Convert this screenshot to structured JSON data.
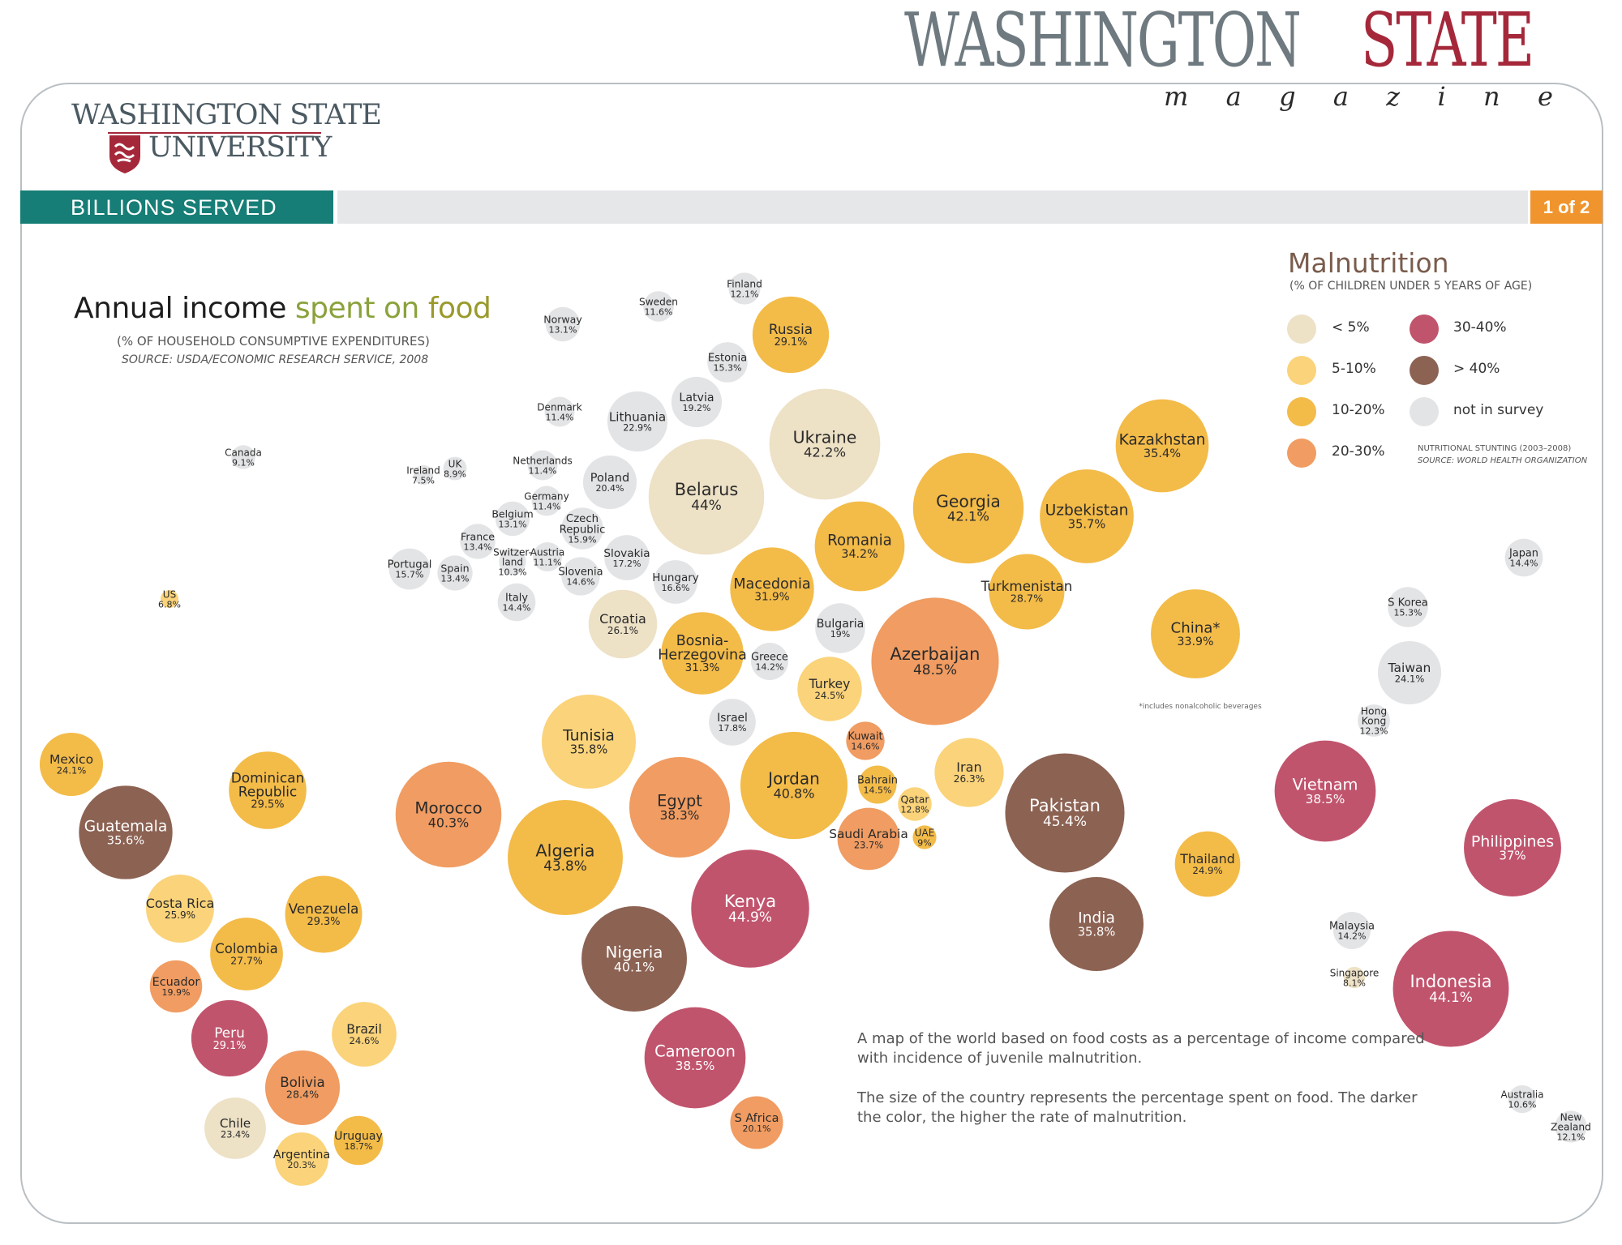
{
  "masthead": {
    "word1": "WASHINGTON",
    "word2": "STATE",
    "tagline_letters": [
      "m",
      "a",
      "g",
      "a",
      "z",
      "i",
      "n",
      "e"
    ]
  },
  "logo": {
    "line1": "WASHINGTON STATE",
    "line2": "UNIVERSITY"
  },
  "section_bar": {
    "title": "BILLIONS SERVED",
    "page": "1 of 2"
  },
  "heading": {
    "title_part1": "Annual income ",
    "title_part2": "spent on ",
    "title_part3": "food",
    "subtitle": "(% OF HOUSEHOLD CONSUMPTIVE EXPENDITURES)",
    "source": "SOURCE: USDA/ECONOMIC RESEARCH SERVICE, 2008"
  },
  "legend": {
    "title": "Malnutrition",
    "subtitle": "(% OF CHILDREN UNDER 5 YEARS OF AGE)",
    "note": "NUTRITIONAL STUNTING (2003–2008)",
    "note_source": "SOURCE: WORLD HEALTH ORGANIZATION",
    "items": [
      {
        "label": "< 5%",
        "color": "#ede1c6"
      },
      {
        "label": "5-10%",
        "color": "#fad37a"
      },
      {
        "label": "10-20%",
        "color": "#f3bb48"
      },
      {
        "label": "20-30%",
        "color": "#f09c62"
      },
      {
        "label": "30-40%",
        "color": "#c1546d"
      },
      {
        "label": "> 40%",
        "color": "#8c6253"
      },
      {
        "label": "not in survey",
        "color": "#e3e4e6"
      }
    ]
  },
  "china_note": "*includes nonalcoholic beverages",
  "description": {
    "p1": "A map of the world based on food costs as a percentage of income compared with incidence of juvenile malnutrition.",
    "p2": "The size of the country represents the percentage spent on food. The darker the color, the higher the rate of malnutrition."
  },
  "chart_data": {
    "type": "bubble-map",
    "size_metric": "percent of household consumptive expenditures spent on food",
    "color_metric": "malnutrition class",
    "countries": [
      {
        "name": "Finland",
        "value": "12.1%",
        "v": 12.1,
        "cls": 6
      },
      {
        "name": "Sweden",
        "value": "11.6%",
        "v": 11.6,
        "cls": 6
      },
      {
        "name": "Norway",
        "value": "13.1%",
        "v": 13.1,
        "cls": 6
      },
      {
        "name": "Russia",
        "value": "29.1%",
        "v": 29.1,
        "cls": 2
      },
      {
        "name": "Estonia",
        "value": "15.3%",
        "v": 15.3,
        "cls": 6
      },
      {
        "name": "Latvia",
        "value": "19.2%",
        "v": 19.2,
        "cls": 6
      },
      {
        "name": "Denmark",
        "value": "11.4%",
        "v": 11.4,
        "cls": 6
      },
      {
        "name": "Lithuania",
        "value": "22.9%",
        "v": 22.9,
        "cls": 6
      },
      {
        "name": "Ukraine",
        "value": "42.2%",
        "v": 42.2,
        "cls": 0
      },
      {
        "name": "Kazakhstan",
        "value": "35.4%",
        "v": 35.4,
        "cls": 2
      },
      {
        "name": "Canada",
        "value": "9.1%",
        "v": 9.1,
        "cls": 6
      },
      {
        "name": "Ireland",
        "value": "7.5%",
        "v": 7.5,
        "cls": 6
      },
      {
        "name": "UK",
        "value": "8.9%",
        "v": 8.9,
        "cls": 6
      },
      {
        "name": "Netherlands",
        "value": "11.4%",
        "v": 11.4,
        "cls": 6
      },
      {
        "name": "Poland",
        "value": "20.4%",
        "v": 20.4,
        "cls": 6
      },
      {
        "name": "Belarus",
        "value": "44%",
        "v": 44,
        "cls": 0
      },
      {
        "name": "Georgia",
        "value": "42.1%",
        "v": 42.1,
        "cls": 2
      },
      {
        "name": "Uzbekistan",
        "value": "35.7%",
        "v": 35.7,
        "cls": 2
      },
      {
        "name": "Germany",
        "value": "11.4%",
        "v": 11.4,
        "cls": 6
      },
      {
        "name": "Belgium",
        "value": "13.1%",
        "v": 13.1,
        "cls": 6
      },
      {
        "name": "Czech Republic",
        "value": "15.9%",
        "v": 15.9,
        "cls": 6
      },
      {
        "name": "France",
        "value": "13.4%",
        "v": 13.4,
        "cls": 6
      },
      {
        "name": "Romania",
        "value": "34.2%",
        "v": 34.2,
        "cls": 2
      },
      {
        "name": "Switzerland",
        "value": "10.3%",
        "v": 10.3,
        "cls": 6
      },
      {
        "name": "Austria",
        "value": "11.1%",
        "v": 11.1,
        "cls": 6
      },
      {
        "name": "Slovakia",
        "value": "17.2%",
        "v": 17.2,
        "cls": 6
      },
      {
        "name": "Portugal",
        "value": "15.7%",
        "v": 15.7,
        "cls": 6
      },
      {
        "name": "Spain",
        "value": "13.4%",
        "v": 13.4,
        "cls": 6
      },
      {
        "name": "Slovenia",
        "value": "14.6%",
        "v": 14.6,
        "cls": 6
      },
      {
        "name": "Hungary",
        "value": "16.6%",
        "v": 16.6,
        "cls": 6
      },
      {
        "name": "Macedonia",
        "value": "31.9%",
        "v": 31.9,
        "cls": 2
      },
      {
        "name": "Turkmenistan",
        "value": "28.7%",
        "v": 28.7,
        "cls": 2
      },
      {
        "name": "Japan",
        "value": "14.4%",
        "v": 14.4,
        "cls": 6
      },
      {
        "name": "US",
        "value": "6.8%",
        "v": 6.8,
        "cls": 1
      },
      {
        "name": "Italy",
        "value": "14.4%",
        "v": 14.4,
        "cls": 6
      },
      {
        "name": "Croatia",
        "value": "26.1%",
        "v": 26.1,
        "cls": 0
      },
      {
        "name": "Bulgaria",
        "value": "19%",
        "v": 19,
        "cls": 6
      },
      {
        "name": "S Korea",
        "value": "15.3%",
        "v": 15.3,
        "cls": 6
      },
      {
        "name": "Bosnia-Herzegovina",
        "value": "31.3%",
        "v": 31.3,
        "cls": 2
      },
      {
        "name": "Greece",
        "value": "14.2%",
        "v": 14.2,
        "cls": 6
      },
      {
        "name": "Azerbaijan",
        "value": "48.5%",
        "v": 48.5,
        "cls": 3
      },
      {
        "name": "China*",
        "value": "33.9%",
        "v": 33.9,
        "cls": 2
      },
      {
        "name": "Taiwan",
        "value": "24.1%",
        "v": 24.1,
        "cls": 6
      },
      {
        "name": "Turkey",
        "value": "24.5%",
        "v": 24.5,
        "cls": 1
      },
      {
        "name": "Hong Kong",
        "value": "12.3%",
        "v": 12.3,
        "cls": 6
      },
      {
        "name": "Israel",
        "value": "17.8%",
        "v": 17.8,
        "cls": 6
      },
      {
        "name": "Tunisia",
        "value": "35.8%",
        "v": 35.8,
        "cls": 1
      },
      {
        "name": "Kuwait",
        "value": "14.6%",
        "v": 14.6,
        "cls": 3
      },
      {
        "name": "Mexico",
        "value": "24.1%",
        "v": 24.1,
        "cls": 2
      },
      {
        "name": "Dominican Republic",
        "value": "29.5%",
        "v": 29.5,
        "cls": 2
      },
      {
        "name": "Jordan",
        "value": "40.8%",
        "v": 40.8,
        "cls": 2
      },
      {
        "name": "Iran",
        "value": "26.3%",
        "v": 26.3,
        "cls": 1
      },
      {
        "name": "Vietnam",
        "value": "38.5%",
        "v": 38.5,
        "cls": 4
      },
      {
        "name": "Morocco",
        "value": "40.3%",
        "v": 40.3,
        "cls": 3
      },
      {
        "name": "Egypt",
        "value": "38.3%",
        "v": 38.3,
        "cls": 3
      },
      {
        "name": "Bahrain",
        "value": "14.5%",
        "v": 14.5,
        "cls": 2
      },
      {
        "name": "Pakistan",
        "value": "45.4%",
        "v": 45.4,
        "cls": 5
      },
      {
        "name": "Qatar",
        "value": "12.8%",
        "v": 12.8,
        "cls": 1
      },
      {
        "name": "Guatemala",
        "value": "35.6%",
        "v": 35.6,
        "cls": 5
      },
      {
        "name": "Saudi Arabia",
        "value": "23.7%",
        "v": 23.7,
        "cls": 3
      },
      {
        "name": "UAE",
        "value": "9%",
        "v": 9,
        "cls": 2
      },
      {
        "name": "Algeria",
        "value": "43.8%",
        "v": 43.8,
        "cls": 2
      },
      {
        "name": "Philippines",
        "value": "37%",
        "v": 37,
        "cls": 4
      },
      {
        "name": "Thailand",
        "value": "24.9%",
        "v": 24.9,
        "cls": 2
      },
      {
        "name": "Kenya",
        "value": "44.9%",
        "v": 44.9,
        "cls": 4
      },
      {
        "name": "Costa Rica",
        "value": "25.9%",
        "v": 25.9,
        "cls": 1
      },
      {
        "name": "Venezuela",
        "value": "29.3%",
        "v": 29.3,
        "cls": 2
      },
      {
        "name": "India",
        "value": "35.8%",
        "v": 35.8,
        "cls": 5
      },
      {
        "name": "Colombia",
        "value": "27.7%",
        "v": 27.7,
        "cls": 2
      },
      {
        "name": "Malaysia",
        "value": "14.2%",
        "v": 14.2,
        "cls": 6
      },
      {
        "name": "Nigeria",
        "value": "40.1%",
        "v": 40.1,
        "cls": 5
      },
      {
        "name": "Ecuador",
        "value": "19.9%",
        "v": 19.9,
        "cls": 3
      },
      {
        "name": "Singapore",
        "value": "8.1%",
        "v": 8.1,
        "cls": 0
      },
      {
        "name": "Indonesia",
        "value": "44.1%",
        "v": 44.1,
        "cls": 4
      },
      {
        "name": "Peru",
        "value": "29.1%",
        "v": 29.1,
        "cls": 4
      },
      {
        "name": "Brazil",
        "value": "24.6%",
        "v": 24.6,
        "cls": 1
      },
      {
        "name": "Cameroon",
        "value": "38.5%",
        "v": 38.5,
        "cls": 4
      },
      {
        "name": "Bolivia",
        "value": "28.4%",
        "v": 28.4,
        "cls": 3
      },
      {
        "name": "Australia",
        "value": "10.6%",
        "v": 10.6,
        "cls": 6
      },
      {
        "name": "S Africa",
        "value": "20.1%",
        "v": 20.1,
        "cls": 3
      },
      {
        "name": "Chile",
        "value": "23.4%",
        "v": 23.4,
        "cls": 0
      },
      {
        "name": "Uruguay",
        "value": "18.7%",
        "v": 18.7,
        "cls": 2
      },
      {
        "name": "New Zealand",
        "value": "12.1%",
        "v": 12.1,
        "cls": 6
      },
      {
        "name": "Argentina",
        "value": "20.3%",
        "v": 20.3,
        "cls": 1
      }
    ]
  }
}
